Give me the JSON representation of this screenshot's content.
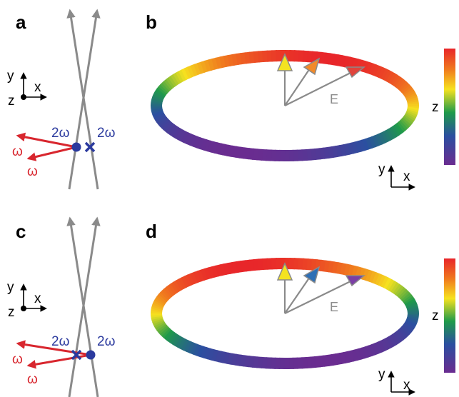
{
  "colors": {
    "beam": "#8a8a8a",
    "red": "#d8262e",
    "blue": "#2b3a9e",
    "e_vector": "#8a8a8a"
  },
  "panels": {
    "a": {
      "label": "a",
      "two_omega_left": "2ω",
      "two_omega_right": "2ω",
      "omega_top": "ω",
      "omega_bottom": "ω"
    },
    "b": {
      "label": "b",
      "e_label": "E",
      "colorbar_label": "z"
    },
    "c": {
      "label": "c",
      "two_omega_left": "2ω",
      "two_omega_right": "2ω",
      "omega_top": "ω",
      "omega_bottom": "ω"
    },
    "d": {
      "label": "d",
      "e_label": "E",
      "colorbar_label": "z"
    }
  },
  "axes": {
    "x": "x",
    "y": "y",
    "z": "z"
  },
  "icons": [
    "beam-arrow-icon",
    "field-vector-arrow-icon",
    "axis-arrow-icon",
    "dot-marker-icon",
    "cross-marker-icon"
  ]
}
